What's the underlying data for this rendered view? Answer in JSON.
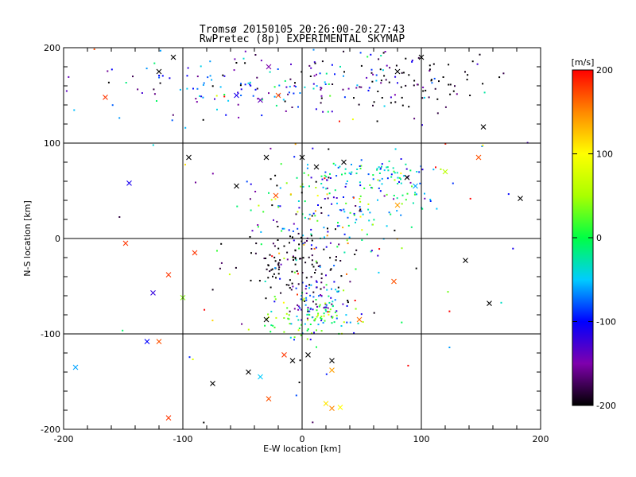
{
  "chart_data": {
    "type": "scatter",
    "title": "Tromsø 20150105 20:26:00-20:27:43",
    "subtitle": "RwPretec (8p) EXPERIMENTAL SKYMAP",
    "xlabel": "E-W location [km]",
    "ylabel": "N-S location [km]",
    "xlim": [
      -200,
      200
    ],
    "ylim": [
      -200,
      200
    ],
    "x_ticks": [
      "-200",
      "-100",
      "0",
      "100",
      "200"
    ],
    "y_ticks": [
      "-200",
      "-100",
      "0",
      "100",
      "200"
    ],
    "grid": true,
    "colorbar": {
      "label": "[m/s]",
      "range": [
        -200,
        200
      ],
      "ticks": [
        "200",
        "100",
        "0",
        "-100",
        "-200"
      ],
      "colormap": "rainbow"
    },
    "clusters": [
      {
        "x": 10,
        "y": 160,
        "sx": 55,
        "sy": 18,
        "n": 110,
        "v": -120,
        "vs": 60
      },
      {
        "x": 85,
        "y": 165,
        "sx": 35,
        "sy": 15,
        "n": 70,
        "v": -200,
        "vs": 30
      },
      {
        "x": -100,
        "y": 165,
        "sx": 60,
        "sy": 20,
        "n": 70,
        "v": -90,
        "vs": 60
      },
      {
        "x": 15,
        "y": 30,
        "sx": 30,
        "sy": 30,
        "n": 190,
        "v": -50,
        "vs": 90
      },
      {
        "x": 85,
        "y": 55,
        "sx": 15,
        "sy": 15,
        "n": 60,
        "v": -50,
        "vs": 50
      },
      {
        "x": 50,
        "y": 70,
        "sx": 20,
        "sy": 5,
        "n": 30,
        "v": -40,
        "vs": 30
      },
      {
        "x": -10,
        "y": -25,
        "sx": 25,
        "sy": 15,
        "n": 90,
        "v": -200,
        "vs": 15
      },
      {
        "x": 12,
        "y": -65,
        "sx": 15,
        "sy": 15,
        "n": 110,
        "v": -110,
        "vs": 60
      },
      {
        "x": 10,
        "y": -85,
        "sx": 20,
        "sy": 10,
        "n": 80,
        "v": 20,
        "vs": 40
      },
      {
        "x": 0,
        "y": 0,
        "sx": 120,
        "sy": 120,
        "n": 90,
        "v": 0,
        "vs": 160
      }
    ],
    "crosses": [
      {
        "x": -165,
        "y": 148,
        "v": 180
      },
      {
        "x": -120,
        "y": 175,
        "v": -200
      },
      {
        "x": -108,
        "y": 190,
        "v": -200
      },
      {
        "x": -55,
        "y": 150,
        "v": -110
      },
      {
        "x": -35,
        "y": 145,
        "v": -140
      },
      {
        "x": -20,
        "y": 150,
        "v": 170
      },
      {
        "x": -28,
        "y": 180,
        "v": -150
      },
      {
        "x": -95,
        "y": 85,
        "v": -200
      },
      {
        "x": -30,
        "y": 85,
        "v": -200
      },
      {
        "x": -55,
        "y": 55,
        "v": -200
      },
      {
        "x": -145,
        "y": 58,
        "v": -110
      },
      {
        "x": -22,
        "y": 45,
        "v": 170
      },
      {
        "x": 0,
        "y": 85,
        "v": -200
      },
      {
        "x": 35,
        "y": 80,
        "v": -200
      },
      {
        "x": 12,
        "y": 75,
        "v": -200
      },
      {
        "x": 148,
        "y": 85,
        "v": 170
      },
      {
        "x": 183,
        "y": 42,
        "v": -200
      },
      {
        "x": 80,
        "y": 35,
        "v": 140
      },
      {
        "x": -148,
        "y": -5,
        "v": 180
      },
      {
        "x": -90,
        "y": -15,
        "v": 180
      },
      {
        "x": -112,
        "y": -38,
        "v": 180
      },
      {
        "x": -125,
        "y": -57,
        "v": -120
      },
      {
        "x": -100,
        "y": -62,
        "v": 40
      },
      {
        "x": 137,
        "y": -23,
        "v": -200
      },
      {
        "x": 157,
        "y": -68,
        "v": -200
      },
      {
        "x": 77,
        "y": -45,
        "v": 170
      },
      {
        "x": 48,
        "y": -85,
        "v": 160
      },
      {
        "x": -30,
        "y": -85,
        "v": -200
      },
      {
        "x": -130,
        "y": -108,
        "v": -100
      },
      {
        "x": -120,
        "y": -108,
        "v": 170
      },
      {
        "x": -190,
        "y": -135,
        "v": -60
      },
      {
        "x": -15,
        "y": -122,
        "v": 180
      },
      {
        "x": 5,
        "y": -122,
        "v": -200
      },
      {
        "x": -8,
        "y": -128,
        "v": -200
      },
      {
        "x": 25,
        "y": -128,
        "v": -200
      },
      {
        "x": -45,
        "y": -140,
        "v": -200
      },
      {
        "x": -75,
        "y": -152,
        "v": -200
      },
      {
        "x": -112,
        "y": -188,
        "v": 180
      },
      {
        "x": -28,
        "y": -168,
        "v": 170
      },
      {
        "x": 25,
        "y": -138,
        "v": 140
      },
      {
        "x": 20,
        "y": -173,
        "v": 110
      },
      {
        "x": 25,
        "y": -178,
        "v": 150
      },
      {
        "x": 32,
        "y": -177,
        "v": 100
      },
      {
        "x": -35,
        "y": -145,
        "v": -50
      },
      {
        "x": 100,
        "y": 190,
        "v": -200
      },
      {
        "x": 80,
        "y": 175,
        "v": -200
      },
      {
        "x": 152,
        "y": 117,
        "v": -200
      },
      {
        "x": 120,
        "y": 70,
        "v": 60
      },
      {
        "x": 95,
        "y": 55,
        "v": -60
      },
      {
        "x": 88,
        "y": 64,
        "v": -200
      }
    ]
  }
}
